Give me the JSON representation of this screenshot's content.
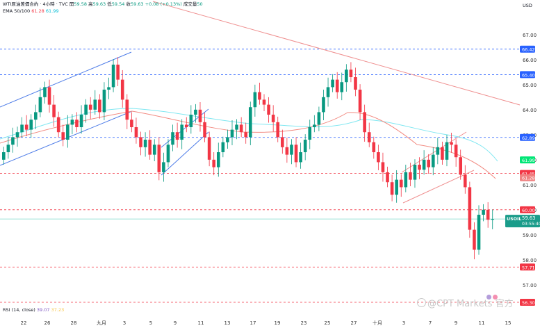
{
  "header": {
    "symbol": "WTI原油差價合約 · 4小時 · TVC",
    "open_label": "開",
    "open": "59.58",
    "high_label": "高",
    "high": "59.63",
    "low_label": "低",
    "low": "59.54",
    "close_label": "收",
    "close": "59.63",
    "change": "+0.08 (+0.13%)",
    "volume_label": "成交量",
    "volume": "50",
    "ema_label": "EMA 50/100",
    "ema50": "61.28",
    "ema100": "61.99"
  },
  "currency": "USD",
  "rsi": {
    "label": "RSI (14, close)",
    "value1": "39.07",
    "value2": "37.23"
  },
  "watermark": "@CPT Markets 官方",
  "colors": {
    "up": "#089981",
    "down": "#f23645",
    "ema50": "#f28b82",
    "ema100": "#7fe7f1",
    "channel": "#4f7de8",
    "trend": "#ef8f8f",
    "blue_level": "#2962ff",
    "red_level": "#f23645",
    "price_line": "#7fd8c9",
    "current": "#1a9c8a",
    "pos_ema": "#ef8181"
  },
  "chart_data": {
    "type": "candlestick",
    "ylim": [
      56.0,
      68.0
    ],
    "y_ticks": [
      57.0,
      58.0,
      59.0,
      60.0,
      61.0,
      62.0,
      63.0,
      64.0,
      65.0,
      66.0,
      67.0
    ],
    "x_ticks": [
      "22",
      "26",
      "28",
      "九月",
      "3",
      "5",
      "9",
      "11",
      "13",
      "17",
      "19",
      "23",
      "25",
      "27",
      "十月",
      "3",
      "7",
      "9",
      "11",
      "15"
    ],
    "candles_close": [
      62.3,
      62.6,
      62.9,
      63.1,
      63.4,
      63.2,
      63.6,
      63.9,
      64.5,
      64.9,
      64.2,
      63.7,
      63.1,
      62.8,
      63.4,
      63.6,
      63.3,
      63.8,
      64.2,
      64.0,
      64.4,
      63.9,
      64.8,
      64.9,
      65.8,
      65.2,
      64.4,
      63.6,
      63.3,
      62.9,
      62.5,
      62.8,
      62.2,
      62.6,
      61.5,
      61.9,
      62.6,
      63.1,
      62.8,
      63.4,
      63.3,
      63.8,
      64.0,
      63.5,
      62.9,
      62.0,
      61.7,
      62.3,
      62.7,
      62.9,
      63.2,
      63.4,
      63.1,
      62.9,
      64.1,
      64.7,
      64.4,
      64.2,
      63.8,
      63.5,
      62.9,
      62.5,
      62.2,
      62.6,
      61.9,
      62.3,
      62.8,
      63.3,
      63.4,
      63.9,
      64.5,
      64.9,
      65.2,
      64.7,
      65.1,
      65.6,
      65.3,
      64.8,
      63.9,
      63.1,
      62.7,
      62.3,
      61.9,
      61.5,
      61.1,
      60.6,
      61.2,
      60.9,
      61.5,
      61.2,
      61.8,
      61.6,
      62.0,
      61.7,
      62.2,
      62.5,
      62.0,
      62.7,
      62.6,
      62.1,
      61.4,
      60.9,
      59.2,
      58.4,
      59.8,
      60.0,
      59.6,
      59.63
    ],
    "levels": [
      {
        "value": 66.42,
        "label": "66.42",
        "kind": "blue"
      },
      {
        "value": 65.4,
        "label": "65.40",
        "kind": "blue"
      },
      {
        "value": 62.89,
        "label": "62.89",
        "kind": "blue"
      },
      {
        "value": 61.45,
        "label": "61.45",
        "kind": "red"
      },
      {
        "value": 60.0,
        "label": "60.00",
        "kind": "red"
      },
      {
        "value": 57.71,
        "label": "57.71",
        "kind": "red"
      },
      {
        "value": 56.3,
        "label": "56.30",
        "kind": "red"
      }
    ],
    "ema_labels": {
      "ema100": "61.99",
      "ema50": "61.28"
    },
    "current": {
      "value": 59.63,
      "label": "59.63",
      "symbol": "USOIL",
      "countdown": "03:55:40"
    }
  }
}
